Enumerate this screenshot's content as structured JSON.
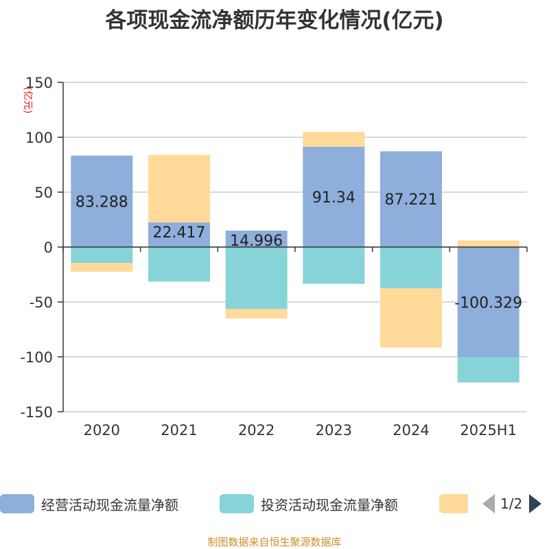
{
  "chart_data": {
    "type": "bar",
    "stacked": true,
    "title": "各项现金流净额历年变化情况(亿元)",
    "unit": "(亿元)",
    "categories": [
      "2020",
      "2021",
      "2022",
      "2023",
      "2024",
      "2025H1"
    ],
    "ylim": [
      -150,
      150
    ],
    "yticks": [
      150,
      100,
      50,
      0,
      -50,
      -100,
      -150
    ],
    "grid": true,
    "legend_position": "bottom",
    "series": [
      {
        "name": "经营活动现金流量净额",
        "color": "#8eaedb",
        "values": [
          83.288,
          22.417,
          14.996,
          91.34,
          87.221,
          -100.329
        ],
        "labels": [
          "83.288",
          "22.417",
          "14.996",
          "91.34",
          "87.221",
          "-100.329"
        ]
      },
      {
        "name": "投资活动现金流量净额",
        "color": "#86d4d8",
        "values": [
          -14.5,
          -31.5,
          -56.5,
          -33.5,
          -37.5,
          -23
        ]
      },
      {
        "name": "",
        "color": "#ffda99",
        "values": [
          -8,
          61.5,
          -8.5,
          13.5,
          -54,
          6
        ]
      }
    ]
  },
  "legend": {
    "items": [
      {
        "label": "经营活动现金流量净额",
        "color": "#8eaedb"
      },
      {
        "label": "投资活动现金流量净额",
        "color": "#86d4d8"
      },
      {
        "label": "",
        "color": "#ffda99"
      }
    ],
    "page_text": "1/2"
  },
  "source": "制图数据来自恒生聚源数据库"
}
